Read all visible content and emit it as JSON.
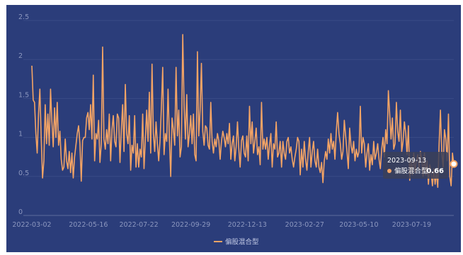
{
  "chart_data": {
    "type": "line",
    "title": "",
    "xlabel": "",
    "ylabel": "",
    "ylim": [
      0,
      2.5
    ],
    "yticks": [
      0,
      0.5,
      1,
      1.5,
      2,
      2.5
    ],
    "x_range": [
      "2022-03-02",
      "2023-09-13"
    ],
    "xticks": [
      "2022-03-02",
      "2022-05-16",
      "2022-07-22",
      "2022-09-29",
      "2022-12-13",
      "2023-02-27",
      "2023-05-10",
      "2023-07-19"
    ],
    "grid": "horizontal",
    "legend_position": "bottom-center",
    "series": [
      {
        "name": "偏股混合型",
        "color": "#f4a465",
        "values": [
          1.92,
          1.48,
          1.45,
          1.05,
          0.8,
          1.3,
          1.62,
          1.0,
          0.48,
          0.7,
          1.42,
          0.92,
          1.3,
          0.9,
          1.62,
          1.2,
          0.88,
          1.38,
          1.0,
          1.45,
          0.9,
          1.08,
          0.72,
          0.58,
          0.62,
          0.98,
          0.7,
          0.6,
          0.82,
          0.55,
          0.8,
          0.48,
          0.75,
          0.9,
          1.05,
          1.15,
          0.92,
          0.44,
          0.96,
          1.0,
          1.0,
          1.25,
          1.32,
          1.1,
          1.42,
          0.98,
          1.8,
          0.7,
          1.05,
          0.98,
          1.22,
          0.68,
          0.92,
          2.16,
          0.98,
          0.85,
          1.1,
          0.92,
          1.3,
          0.7,
          1.1,
          1.28,
          0.95,
          0.88,
          1.3,
          1.25,
          0.68,
          1.1,
          1.42,
          0.82,
          1.68,
          1.05,
          0.92,
          1.28,
          0.58,
          0.9,
          0.8,
          1.28,
          0.62,
          0.92,
          0.62,
          0.85,
          0.75,
          1.3,
          0.6,
          0.98,
          1.35,
          0.95,
          1.58,
          0.8,
          1.94,
          1.05,
          0.82,
          1.2,
          0.92,
          0.7,
          0.96,
          1.38,
          1.9,
          0.78,
          1.05,
          0.95,
          1.62,
          0.98,
          0.5,
          1.25,
          1.1,
          0.9,
          1.9,
          1.02,
          1.35,
          0.75,
          0.88,
          2.32,
          1.42,
          0.98,
          1.55,
          0.88,
          1.05,
          1.28,
          0.92,
          1.3,
          0.78,
          0.7,
          2.1,
          1.02,
          1.35,
          1.95,
          1.08,
          0.9,
          1.15,
          1.12,
          0.9,
          0.85,
          1.45,
          0.95,
          0.8,
          0.98,
          0.88,
          1.05,
          0.96,
          0.72,
          0.95,
          1.08,
          1.0,
          0.88,
          1.05,
          0.92,
          1.18,
          0.72,
          0.92,
          1.02,
          0.7,
          0.88,
          1.2,
          0.85,
          0.62,
          0.96,
          1.02,
          0.8,
          0.75,
          1.02,
          0.7,
          1.4,
          0.92,
          1.2,
          0.8,
          0.95,
          1.12,
          0.78,
          0.88,
          0.65,
          1.45,
          0.85,
          0.98,
          0.85,
          1.0,
          0.72,
          0.9,
          1.05,
          0.62,
          0.92,
          0.85,
          1.2,
          0.75,
          0.8,
          0.95,
          0.62,
          0.95,
          0.8,
          0.72,
          0.95,
          1.0,
          0.8,
          0.88,
          0.72,
          0.62,
          0.75,
          0.85,
          1.0,
          0.95,
          0.52,
          0.85,
          0.62,
          0.95,
          0.72,
          0.58,
          0.82,
          1.0,
          0.62,
          0.82,
          0.95,
          0.7,
          0.62,
          0.85,
          0.62,
          0.55,
          0.68,
          0.42,
          0.7,
          0.82,
          0.72,
          0.98,
          0.8,
          1.05,
          0.85,
          0.95,
          0.72,
          1.08,
          1.32,
          1.05,
          0.92,
          0.72,
          0.82,
          1.22,
          1.02,
          0.82,
          0.6,
          1.12,
          0.9,
          0.8,
          0.95,
          0.7,
          0.85,
          0.75,
          0.82,
          1.4,
          0.8,
          1.0,
          0.92,
          0.62,
          0.8,
          0.92,
          0.58,
          0.78,
          0.65,
          0.95,
          0.72,
          0.8,
          0.92,
          0.72,
          0.6,
          0.85,
          1.0,
          0.75,
          1.1,
          0.92,
          1.6,
          1.3,
          0.98,
          1.25,
          0.85,
          0.92,
          1.45,
          1.08,
          0.95,
          1.35,
          0.82,
          0.95,
          1.2,
          1.05,
          0.78,
          1.15,
          0.45,
          0.7,
          0.52,
          0.8,
          0.55,
          0.7,
          0.78,
          0.58,
          0.82,
          0.72,
          0.5,
          0.8,
          0.52,
          0.7,
          0.4,
          0.65,
          0.55,
          0.38,
          0.6,
          0.4,
          0.55,
          0.36,
          0.92,
          1.35,
          0.8,
          0.62,
          1.1,
          0.98,
          0.7,
          1.3,
          0.5,
          0.38,
          0.8,
          0.66
        ]
      }
    ]
  },
  "tooltip": {
    "date": "2023-09-13",
    "series_name": "偏股混合型",
    "value": "0.66"
  }
}
